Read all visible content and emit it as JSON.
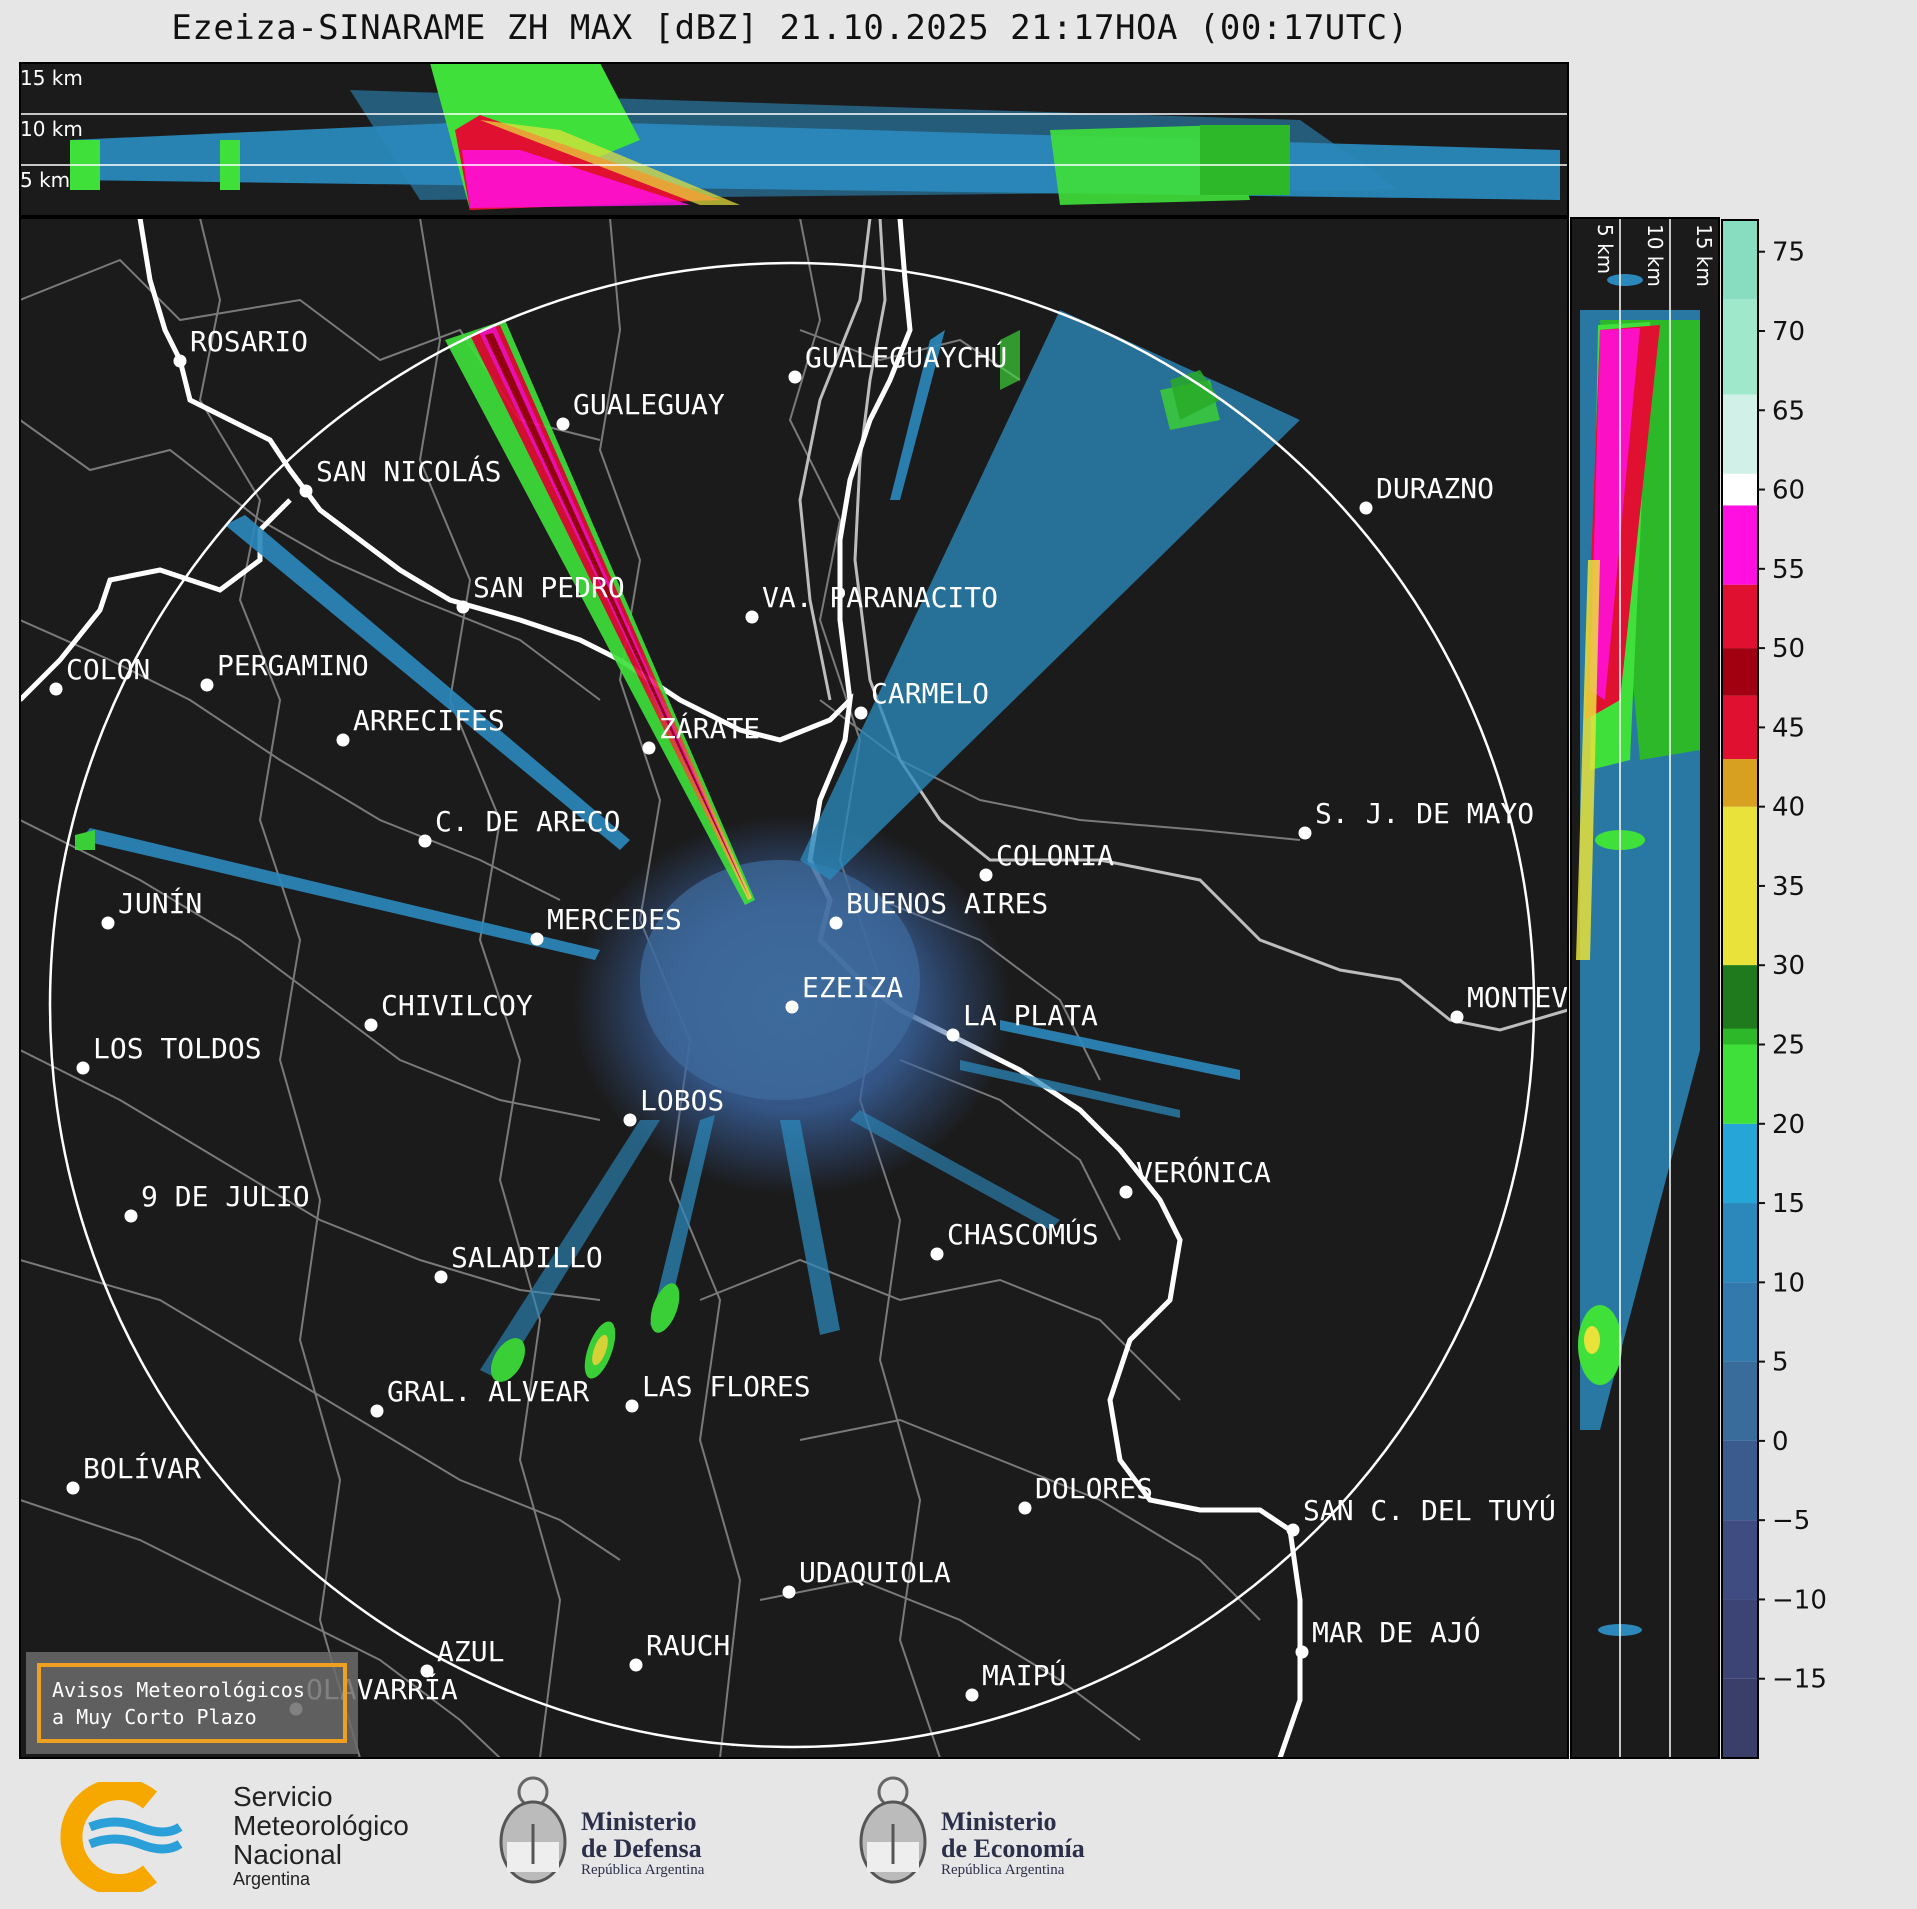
{
  "title": "Ezeiza-SINARAME ZH MAX [dBZ] 21.10.2025 21:17HOA (00:17UTC)",
  "top_panel_labels": [
    "15 km",
    "10 km",
    "5 km"
  ],
  "side_panel_labels": [
    "5 km",
    "10 km",
    "15 km"
  ],
  "colorbar": {
    "unit": "dBZ",
    "ticks": [
      "75",
      "70",
      "65",
      "60",
      "55",
      "50",
      "45",
      "40",
      "35",
      "30",
      "25",
      "20",
      "15",
      "10",
      "5",
      "0",
      "−5",
      "−10",
      "−15"
    ],
    "tick_values": [
      75,
      70,
      65,
      60,
      55,
      50,
      45,
      40,
      35,
      30,
      25,
      20,
      15,
      10,
      5,
      0,
      -5,
      -10,
      -15
    ],
    "range": [
      -20,
      77
    ],
    "colors": {
      "lt_neg15": "#3a3f6a",
      "neg15": "#3c4476",
      "neg10": "#3e4c82",
      "neg5": "#3b5a8e",
      "zero": "#3a6c9b",
      "five": "#3479ab",
      "ten": "#2c88bb",
      "fifteen": "#26a6d6",
      "twenty": "#3fe03a",
      "twentyfive": "#2db82a",
      "thirty": "#1e7a1c",
      "thirtyfive": "#e8e23a",
      "forty": "#d8a020",
      "fortyfive": "#e01030",
      "fifty": "#a00010",
      "fiftyfive": "#ff10e0",
      "sixty": "#ffffff",
      "sixtyfive": "#d0f0e8",
      "seventy": "#a0e8cc",
      "seventyfive": "#88dcc0"
    }
  },
  "cities": [
    {
      "name": "ROSARIO"
    },
    {
      "name": "GUALEGUAYCHÚ"
    },
    {
      "name": "GUALEGUAY"
    },
    {
      "name": "SAN NICOLÁS"
    },
    {
      "name": "DURAZNO"
    },
    {
      "name": "SAN PEDRO"
    },
    {
      "name": "VA. PARANACITO"
    },
    {
      "name": "COLON"
    },
    {
      "name": "PERGAMINO"
    },
    {
      "name": "CARMELO"
    },
    {
      "name": "ZÁRATE"
    },
    {
      "name": "ARRECIFES"
    },
    {
      "name": "S. J. DE MAYO"
    },
    {
      "name": "C. DE ARECO"
    },
    {
      "name": "COLONIA"
    },
    {
      "name": "JUNÍN"
    },
    {
      "name": "BUENOS AIRES"
    },
    {
      "name": "MERCEDES"
    },
    {
      "name": "EZEIZA"
    },
    {
      "name": "MONTEV"
    },
    {
      "name": "CHIVILCOY"
    },
    {
      "name": "LA PLATA"
    },
    {
      "name": "LOS TOLDOS"
    },
    {
      "name": "LOBOS"
    },
    {
      "name": "VERÓNICA"
    },
    {
      "name": "9 DE JULIO"
    },
    {
      "name": "CHASCOMÚS"
    },
    {
      "name": "SALADILLO"
    },
    {
      "name": "GRAL. ALVEAR"
    },
    {
      "name": "LAS FLORES"
    },
    {
      "name": "BOLÍVAR"
    },
    {
      "name": "DOLORES"
    },
    {
      "name": "SAN C. DEL TUYÚ"
    },
    {
      "name": "UDAQUIOLA"
    },
    {
      "name": "MAR DE AJÓ"
    },
    {
      "name": "AZUL"
    },
    {
      "name": "RAUCH"
    },
    {
      "name": "OLAVARRÍA"
    },
    {
      "name": "MAIPÚ"
    }
  ],
  "warning_box": {
    "line1": "Avisos Meteorológicos",
    "line2": "a Muy Corto Plazo"
  },
  "footer": {
    "smn": {
      "line1": "Servicio",
      "line2": "Meteorológico",
      "line3": "Nacional",
      "line4": "Argentina"
    },
    "defensa": {
      "line1": "Ministerio",
      "line2": "de Defensa",
      "line3": "República Argentina"
    },
    "economia": {
      "line1": "Ministerio",
      "line2": "de Economía",
      "line3": "República Argentina"
    }
  }
}
